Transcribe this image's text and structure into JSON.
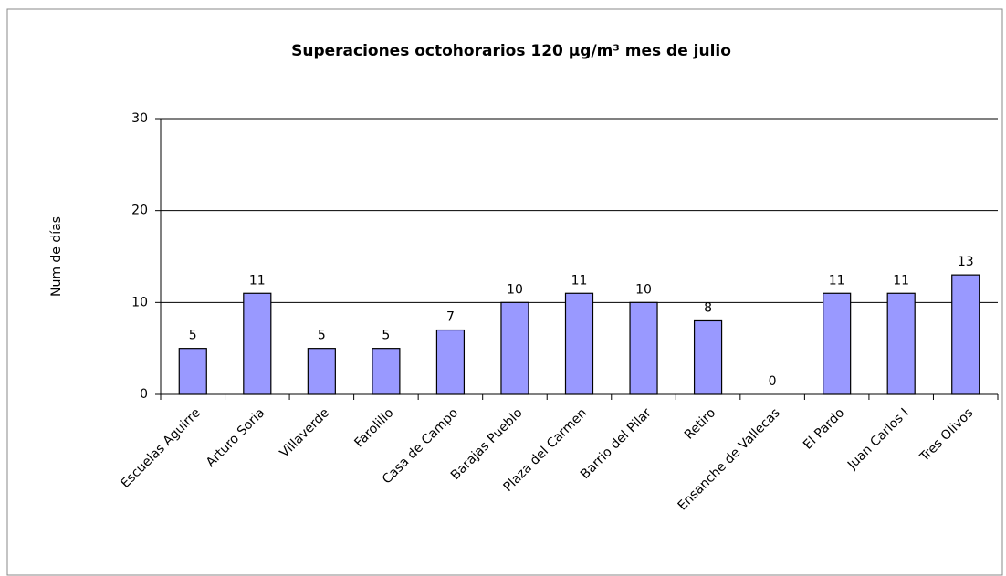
{
  "chart_data": {
    "type": "bar",
    "title": "Superaciones octohorarios 120 µg/m³ mes de julio",
    "y_label": "Num de días",
    "categories": [
      "Escuelas Aguirre",
      "Arturo Soria",
      "Villaverde",
      "Farolillo",
      "Casa de Campo",
      "Barajas Pueblo",
      "Plaza del Carmen",
      "Barrio del Pilar",
      "Retiro",
      "Ensanche de Vallecas",
      "El Pardo",
      "Juan Carlos I",
      "Tres Olivos"
    ],
    "values": [
      5,
      11,
      5,
      5,
      7,
      10,
      11,
      10,
      8,
      0,
      11,
      11,
      13
    ],
    "color": "#9999ff",
    "ylim": [
      0,
      30
    ],
    "yticks": [
      0,
      10,
      20,
      30
    ],
    "grid": true
  }
}
